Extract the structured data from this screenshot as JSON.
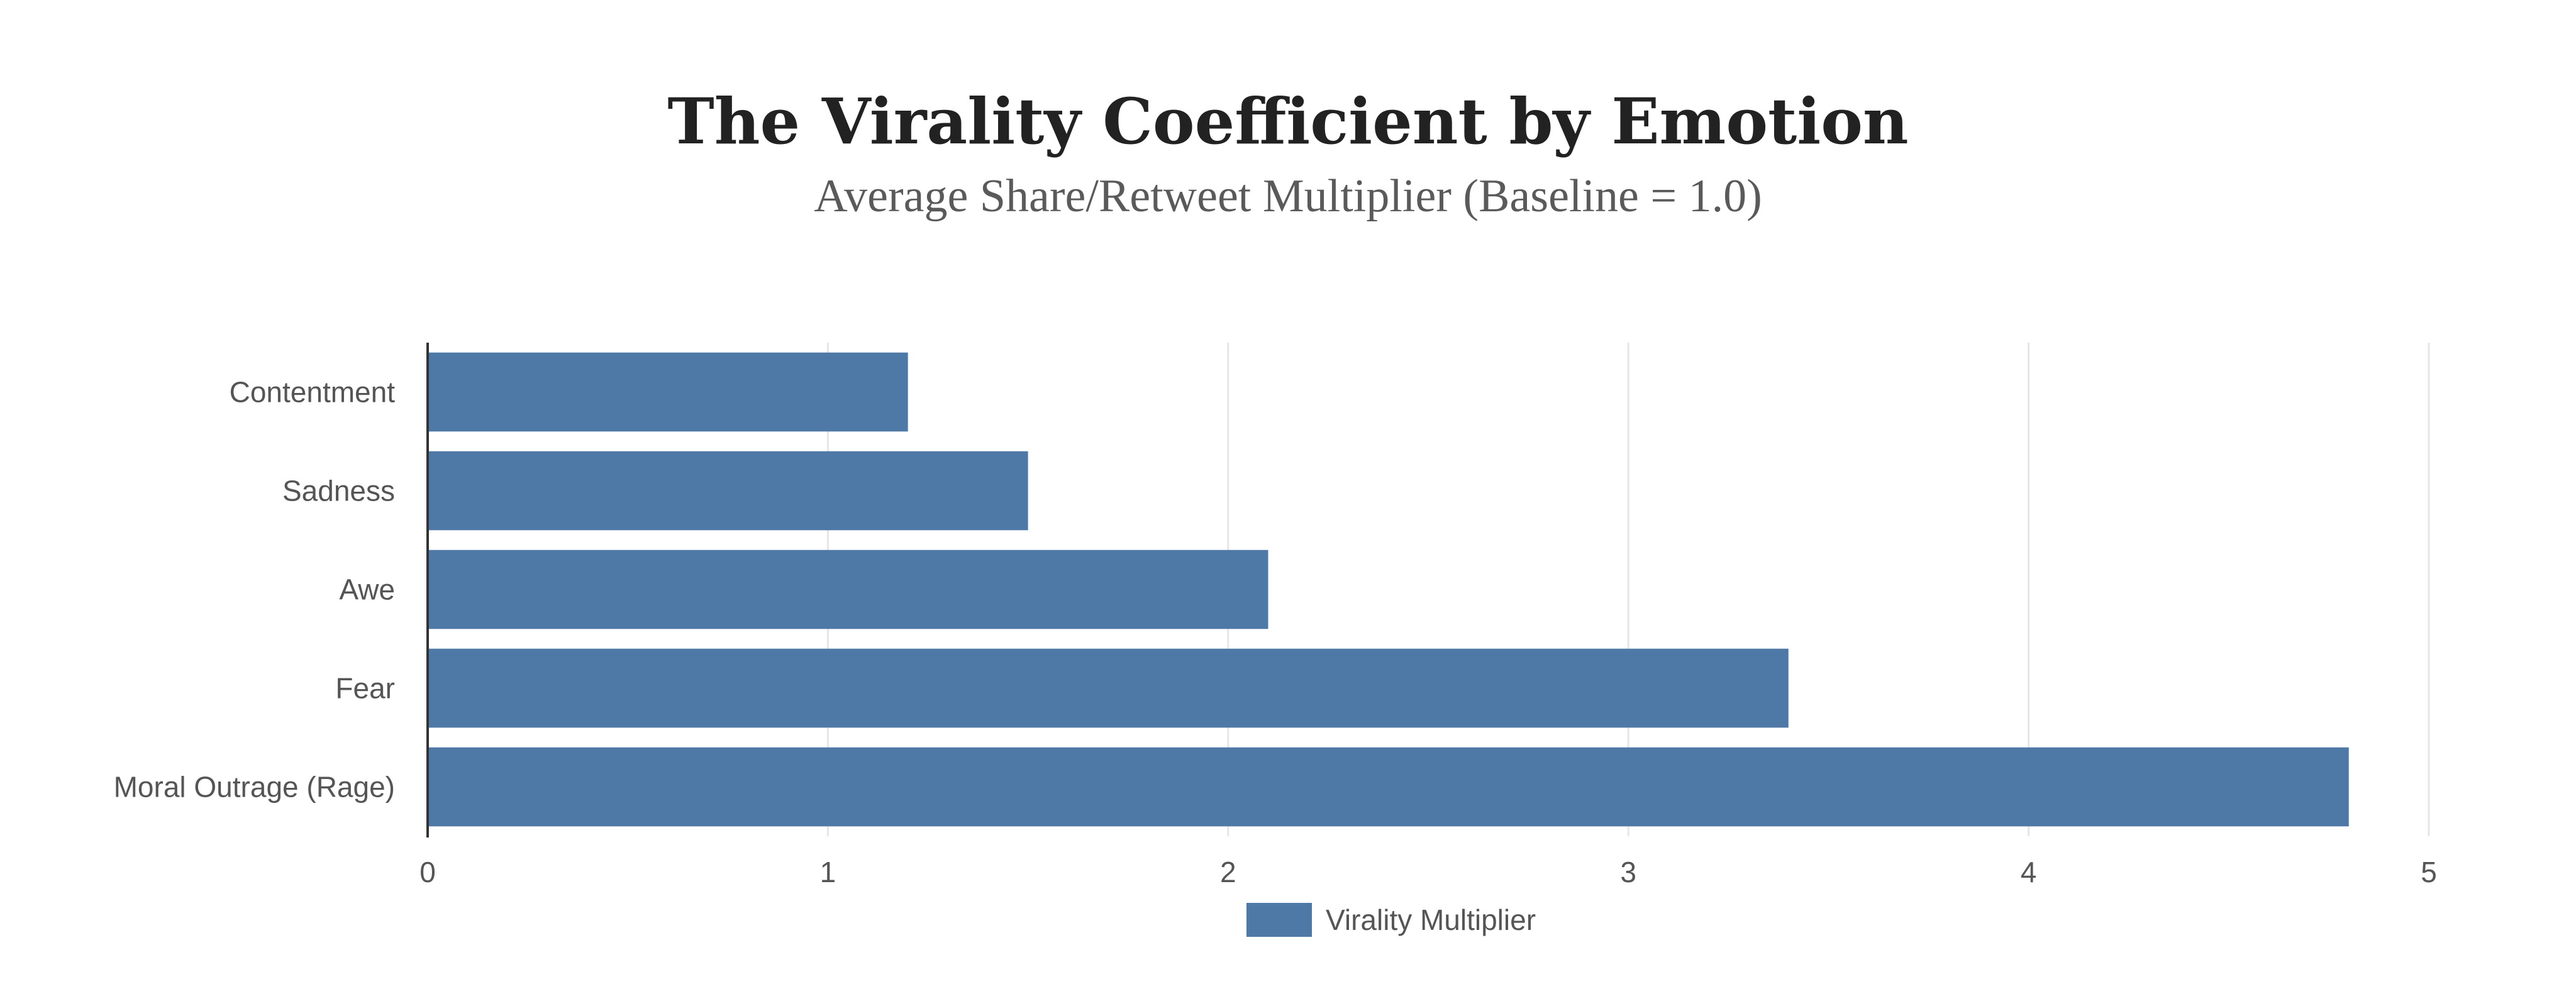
{
  "chart_data": {
    "type": "bar",
    "orientation": "horizontal",
    "title": "The Virality Coefficient by Emotion",
    "subtitle": "Average Share/Retweet Multiplier (Baseline = 1.0)",
    "categories": [
      "Contentment",
      "Sadness",
      "Awe",
      "Fear",
      "Moral Outrage (Rage)"
    ],
    "series": [
      {
        "name": "Virality Multiplier",
        "values": [
          1.2,
          1.5,
          2.1,
          3.4,
          4.8
        ],
        "color": "#4e79a7"
      }
    ],
    "xlim": [
      0,
      5
    ],
    "x_ticks": [
      "0",
      "1",
      "2",
      "3",
      "4",
      "5"
    ],
    "xlabel": "",
    "ylabel": "",
    "grid": true,
    "legend_position": "bottom-center"
  }
}
